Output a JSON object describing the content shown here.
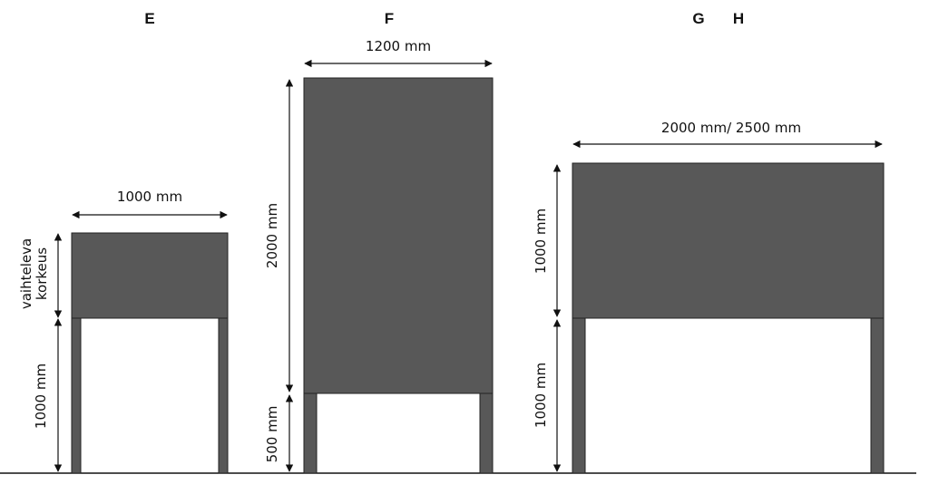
{
  "colors": {
    "panel": "#585858",
    "line": "#111111",
    "background": "#ffffff"
  },
  "signs": {
    "e": {
      "label": "E",
      "width_label": "1000 mm",
      "panel_height_label_line1": "vaihteleva",
      "panel_height_label_line2": "korkeus",
      "leg_height_label": "1000 mm"
    },
    "f": {
      "label": "F",
      "width_label": "1200 mm",
      "panel_height_label": "2000 mm",
      "leg_height_label": "500 mm"
    },
    "gh": {
      "label_g": "G",
      "label_h": "H",
      "width_label": "2000 mm/ 2500 mm",
      "panel_height_label": "1000 mm",
      "leg_height_label": "1000 mm"
    }
  }
}
